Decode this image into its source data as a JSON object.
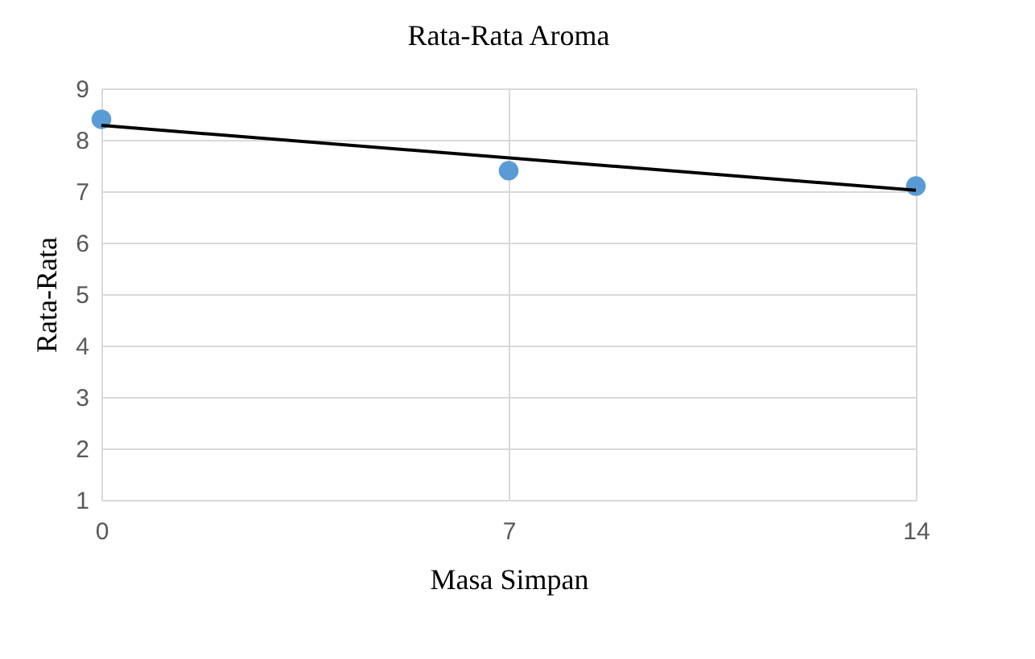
{
  "chart_data": {
    "type": "scatter",
    "title": "Rata-Rata Aroma",
    "xlabel": "Masa Simpan",
    "ylabel": "Rata-Rata",
    "x": [
      0,
      7,
      14
    ],
    "series": [
      {
        "type": "scatter",
        "color": "#5b9bd5",
        "values": [
          8.4,
          7.4,
          7.1
        ],
        "marker": "circle"
      },
      {
        "type": "line",
        "color": "#000000",
        "x": [
          0,
          14
        ],
        "values": [
          8.28,
          7.02
        ],
        "line_style": "solid",
        "marker": "none"
      }
    ],
    "xlim": [
      0,
      14
    ],
    "xticks": [
      0,
      7,
      14
    ],
    "ylim": [
      1,
      9
    ],
    "yticks": [
      1,
      2,
      3,
      4,
      5,
      6,
      7,
      8,
      9
    ],
    "grid": true,
    "legend": false
  }
}
